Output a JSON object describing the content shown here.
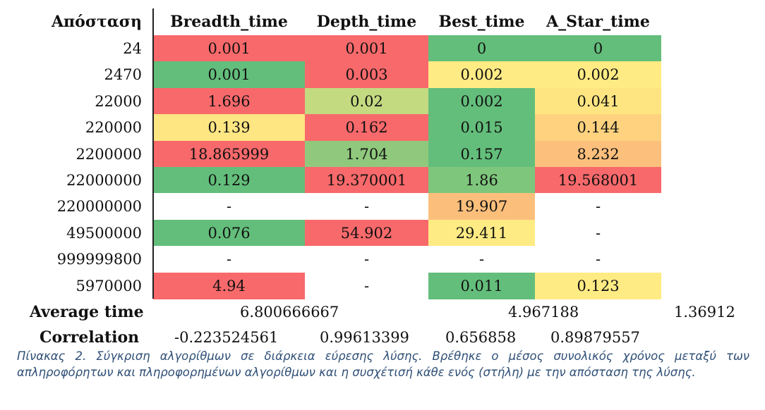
{
  "header": {
    "distance": "Απόσταση",
    "breadth": "Breadth_time",
    "depth": "Depth_time",
    "best": "Best_time",
    "astar": "A_Star_time"
  },
  "rows": [
    {
      "distance": "24",
      "breadth": "0.001",
      "depth": "0.001",
      "best": "0",
      "astar": "0",
      "colors": [
        "#f8696b",
        "#f8696b",
        "#63be7b",
        "#63be7b"
      ]
    },
    {
      "distance": "2470",
      "breadth": "0.001",
      "depth": "0.003",
      "best": "0.002",
      "astar": "0.002",
      "colors": [
        "#63be7b",
        "#f8696b",
        "#ffeb84",
        "#ffeb84"
      ]
    },
    {
      "distance": "22000",
      "breadth": "1.696",
      "depth": "0.02",
      "best": "0.002",
      "astar": "0.041",
      "colors": [
        "#f8696b",
        "#c3da81",
        "#63be7b",
        "#fee582"
      ]
    },
    {
      "distance": "220000",
      "breadth": "0.139",
      "depth": "0.162",
      "best": "0.015",
      "astar": "0.144",
      "colors": [
        "#fee683",
        "#f8696b",
        "#63be7b",
        "#fed27f"
      ]
    },
    {
      "distance": "2200000",
      "breadth": "18.865999",
      "depth": "1.704",
      "best": "0.157",
      "astar": "8.232",
      "colors": [
        "#f8696b",
        "#90c97d",
        "#63be7b",
        "#fcc07c"
      ]
    },
    {
      "distance": "22000000",
      "breadth": "0.129",
      "depth": "19.370001",
      "best": "1.86",
      "astar": "19.568001",
      "colors": [
        "#63be7b",
        "#f8696b",
        "#7ec67c",
        "#f8696b"
      ]
    },
    {
      "distance": "220000000",
      "breadth": "-",
      "depth": "-",
      "best": "19.907",
      "astar": "-",
      "colors": [
        "#ffffff",
        "#ffffff",
        "#fcbf7b",
        "#ffffff"
      ]
    },
    {
      "distance": "49500000",
      "breadth": "0.076",
      "depth": "54.902",
      "best": "29.411",
      "astar": "-",
      "colors": [
        "#63be7b",
        "#f8696b",
        "#ffeb84",
        "#ffffff"
      ]
    },
    {
      "distance": "999999800",
      "breadth": "-",
      "depth": "-",
      "best": "-",
      "astar": "-",
      "colors": [
        "#ffffff",
        "#ffffff",
        "#ffffff",
        "#ffffff"
      ]
    },
    {
      "distance": "5970000",
      "breadth": "4.94",
      "depth": "-",
      "best": "0.011",
      "astar": "0.123",
      "colors": [
        "#f8696b",
        "#ffffff",
        "#63be7b",
        "#ffeb84"
      ]
    }
  ],
  "footer": {
    "average_label": "Average time",
    "average_uninformed": "6.800666667",
    "average_informed": "4.967188",
    "average_ratio": "1.36912",
    "correlation_label": "Correlation",
    "corr_breadth": "-0.223524561",
    "corr_depth": "0.99613399",
    "corr_best": "0.656858",
    "corr_astar": "0.89879557"
  },
  "caption": "Πίνακας 2. Σύγκριση αλγορίθμων σε διάρκεια εύρεσης λύσης. Βρέθηκε ο μέσος συνολικός χρόνος μεταξύ των απληροφόρητων και πληροφορημένων αλγορίθμων και η συσχέτισή κάθε ενός (στήλη) με την απόσταση της λύσης."
}
